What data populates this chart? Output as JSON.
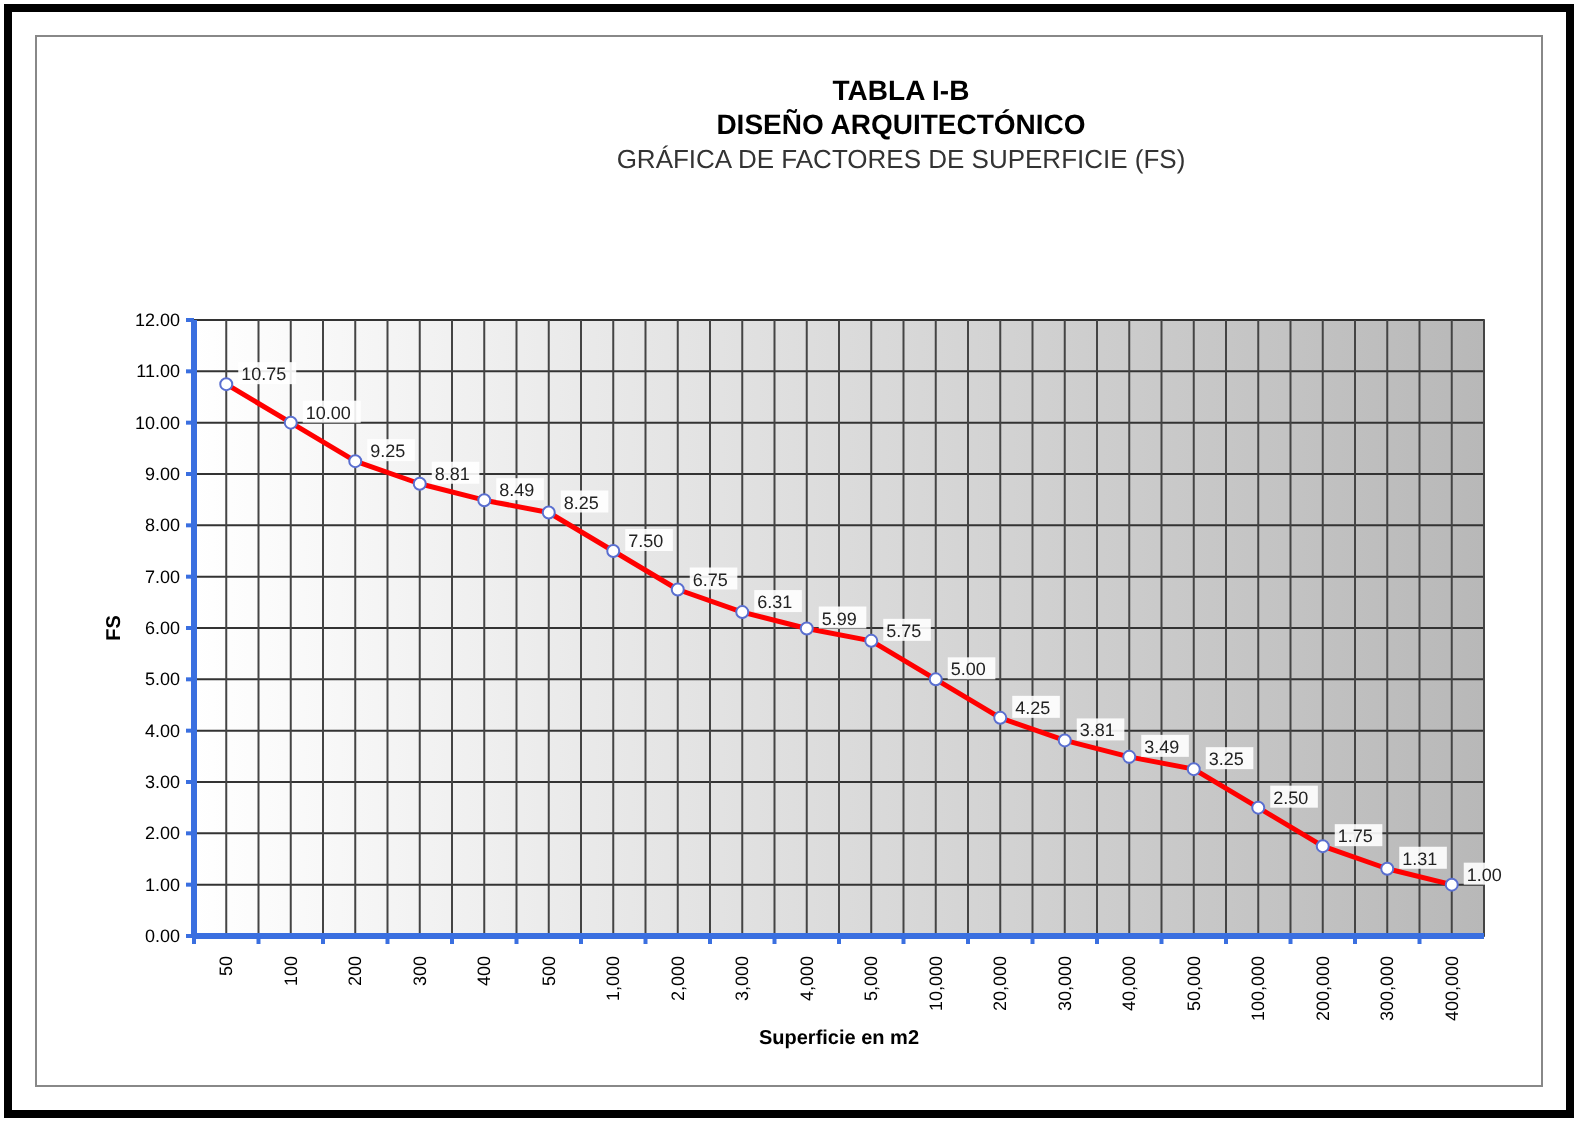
{
  "chart_data": {
    "type": "line",
    "title": "TABLA I-B\nDISEÑO ARQUITECTÓNICO",
    "subtitle": "GRÁFICA DE FACTORES DE SUPERFICIE (FS)",
    "xlabel": "Superficie en m2",
    "ylabel": "FS",
    "categories": [
      "50",
      "100",
      "200",
      "300",
      "400",
      "500",
      "1,000",
      "2,000",
      "3,000",
      "4,000",
      "5,000",
      "10,000",
      "20,000",
      "30,000",
      "40,000",
      "50,000",
      "100,000",
      "200,000",
      "300,000",
      "400,000"
    ],
    "series": [
      {
        "color": "#ff0000",
        "values": [
          10.75,
          10.0,
          9.25,
          8.81,
          8.49,
          8.25,
          7.5,
          6.75,
          6.31,
          5.99,
          5.75,
          5.0,
          4.25,
          3.81,
          3.49,
          3.25,
          2.5,
          1.75,
          1.31,
          1.0
        ],
        "value_labels": [
          "10.75",
          "10.00",
          "9.25",
          "8.81",
          "8.49",
          "8.25",
          "7.50",
          "6.75",
          "6.31",
          "5.99",
          "5.75",
          "5.00",
          "4.25",
          "3.81",
          "3.49",
          "3.25",
          "2.50",
          "1.75",
          "1.31",
          "1.00"
        ]
      }
    ],
    "ylim": [
      0,
      12
    ],
    "yticks": [
      {
        "value": 0,
        "label": "0.00"
      },
      {
        "value": 1,
        "label": "1.00"
      },
      {
        "value": 2,
        "label": "2.00"
      },
      {
        "value": 3,
        "label": "3.00"
      },
      {
        "value": 4,
        "label": "4.00"
      },
      {
        "value": 5,
        "label": "5.00"
      },
      {
        "value": 6,
        "label": "6.00"
      },
      {
        "value": 7,
        "label": "7.00"
      },
      {
        "value": 8,
        "label": "8.00"
      },
      {
        "value": 9,
        "label": "9.00"
      },
      {
        "value": 10,
        "label": "10.00"
      },
      {
        "value": 11,
        "label": "11.00"
      },
      {
        "value": 12,
        "label": "12.00"
      }
    ],
    "grid": true,
    "marker": "circle",
    "line_style": "solid"
  }
}
